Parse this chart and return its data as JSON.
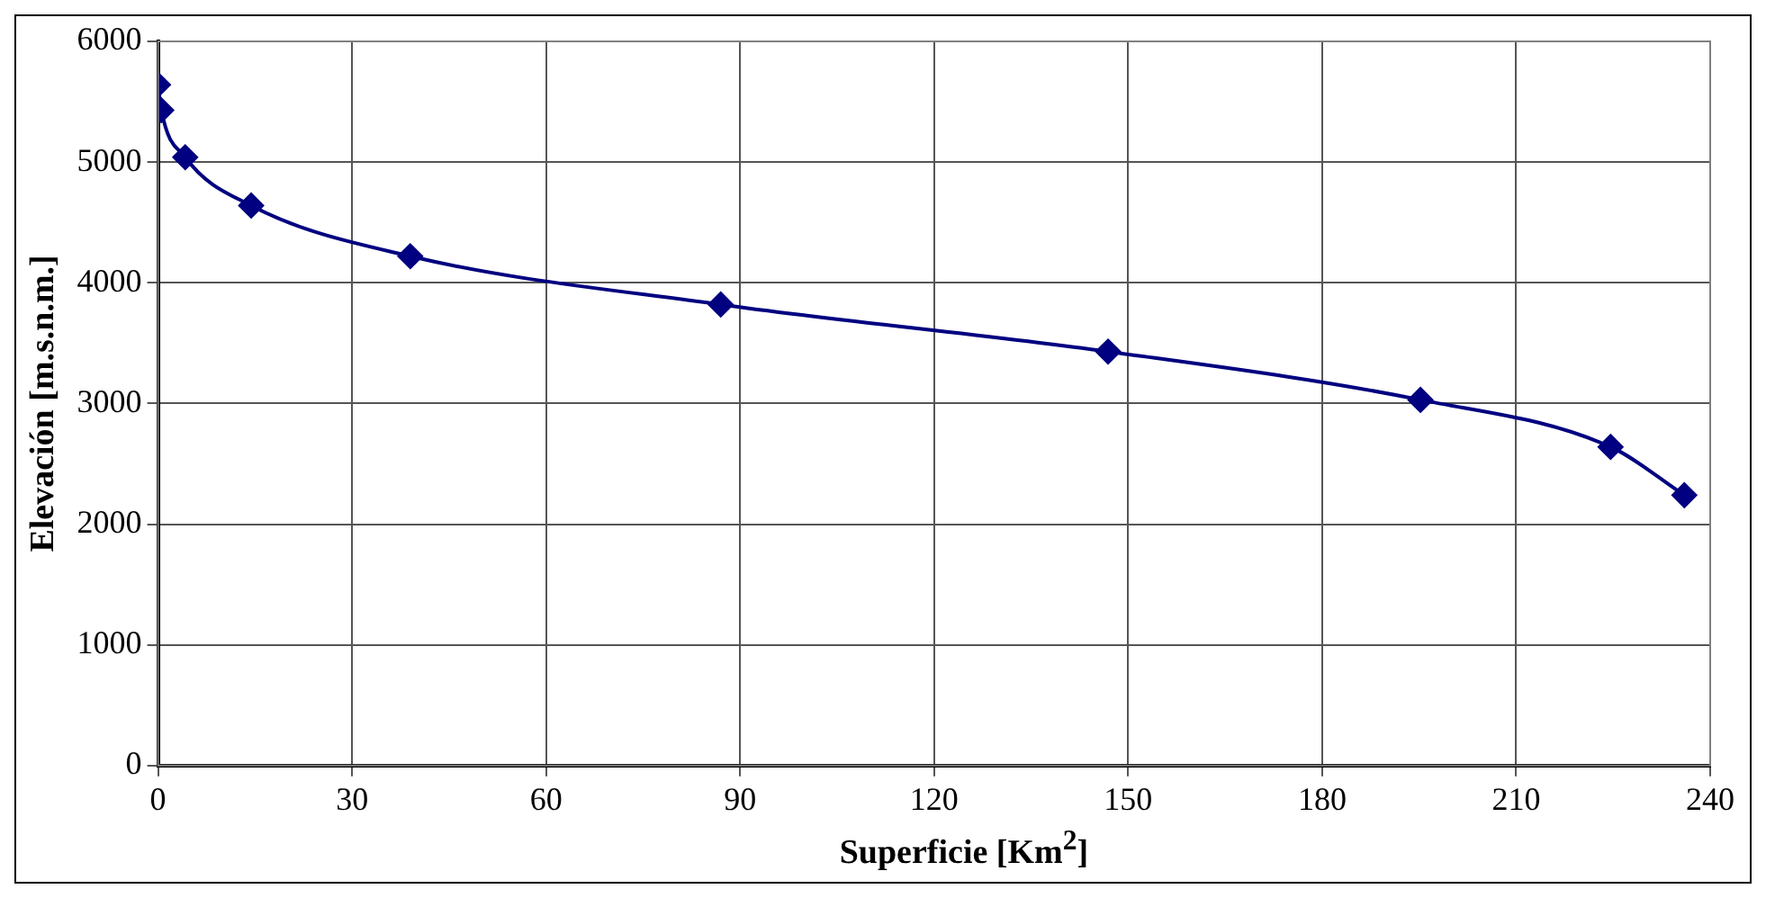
{
  "chart_data": {
    "type": "line",
    "xlabel": "Superficie [Km$^{2}$]",
    "ylabel": "Elevación [m.s.n.m.]",
    "x": [
      0,
      0.5,
      4.2,
      14.4,
      39,
      87,
      146.9,
      195.2,
      224.6,
      236
    ],
    "series": [
      {
        "color": "#000080",
        "values": [
          5640,
          5430,
          5040,
          4640,
          4220,
          3820,
          3430,
          3030,
          2640,
          2240
        ]
      }
    ],
    "xlim": [
      0,
      240
    ],
    "xticks": [
      0,
      30,
      60,
      90,
      120,
      150,
      180,
      210,
      240
    ],
    "ylim": [
      0,
      6000
    ],
    "yticks": [
      0,
      1000,
      2000,
      3000,
      4000,
      5000,
      6000
    ],
    "grid": true,
    "legend": false,
    "marker": "diamond",
    "line_style": "solid"
  }
}
